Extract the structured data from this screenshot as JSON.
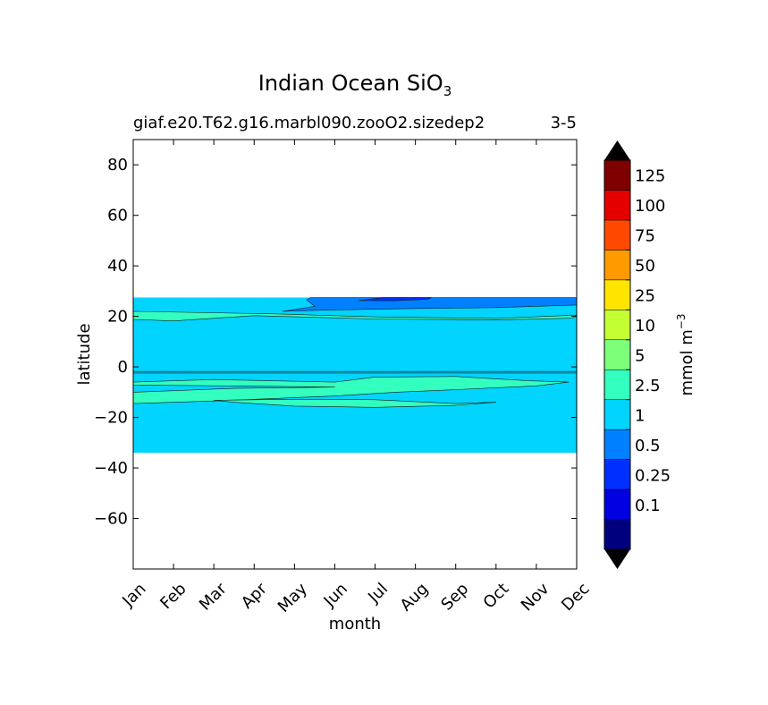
{
  "chart_data": {
    "type": "contour",
    "title": "Indian Ocean SiO",
    "title_subscript": "3",
    "subtitle_left": "giaf.e20.T62.g16.marbl090.zooO2.sizedep2",
    "subtitle_right": "3-5",
    "xlabel": "month",
    "ylabel": "latitude",
    "x_ticks": [
      "Jan",
      "Feb",
      "Mar",
      "Apr",
      "May",
      "Jun",
      "Jul",
      "Aug",
      "Sep",
      "Oct",
      "Nov",
      "Dec"
    ],
    "xlim": [
      0,
      11
    ],
    "ylim": [
      -80,
      90
    ],
    "y_ticks": [
      80,
      60,
      40,
      20,
      0,
      -20,
      -40,
      -60
    ],
    "y_tick_labels": [
      "80",
      "60",
      "40",
      "20",
      "0",
      "−20",
      "−40",
      "−60"
    ],
    "data_lat_range": [
      -34,
      27.5
    ],
    "colorbar": {
      "label": "mmol m",
      "label_superscript": "−3",
      "levels": [
        "0.1",
        "0.25",
        "0.5",
        "1",
        "2.5",
        "5",
        "10",
        "25",
        "50",
        "75",
        "100",
        "125"
      ],
      "colors": [
        "#00007f",
        "#0000e0",
        "#0030ff",
        "#0080ff",
        "#00d4ff",
        "#33ffbf",
        "#7dff7a",
        "#c4ff33",
        "#ffe500",
        "#ff9a00",
        "#ff4a00",
        "#e50000",
        "#7f0000"
      ],
      "extend": "both"
    },
    "regions": [
      {
        "name": "base",
        "level_index": 4,
        "polygon": [
          [
            0,
            27.5
          ],
          [
            11,
            27.5
          ],
          [
            11,
            -34
          ],
          [
            0,
            -34
          ]
        ]
      },
      {
        "name": "north-coast-band",
        "level_index": 5,
        "polygon": [
          [
            0,
            22
          ],
          [
            3.5,
            21
          ],
          [
            6,
            19.8
          ],
          [
            9,
            19.2
          ],
          [
            11,
            20.5
          ],
          [
            10.9,
            19.3
          ],
          [
            9,
            18.6
          ],
          [
            6,
            19
          ],
          [
            3,
            20.3
          ],
          [
            1,
            18.2
          ],
          [
            0,
            18.8
          ]
        ]
      },
      {
        "name": "arabian-sea-upper",
        "level_index": 3,
        "polygon": [
          [
            3.7,
            22
          ],
          [
            4.5,
            24
          ],
          [
            4.3,
            26.5
          ],
          [
            4.4,
            27.5
          ],
          [
            11,
            27.5
          ],
          [
            11,
            24.5
          ],
          [
            9,
            23.5
          ],
          [
            6.5,
            23
          ],
          [
            4.8,
            22.5
          ]
        ]
      },
      {
        "name": "arabian-sea-min",
        "level_index": 2,
        "polygon": [
          [
            5.6,
            26.3
          ],
          [
            6.2,
            27.5
          ],
          [
            7.4,
            27.5
          ],
          [
            7.3,
            26.8
          ],
          [
            6.5,
            26.2
          ]
        ]
      },
      {
        "name": "south-band",
        "level_index": 5,
        "polygon": [
          [
            0,
            -6
          ],
          [
            2,
            -5
          ],
          [
            5,
            -6
          ],
          [
            6,
            -4
          ],
          [
            8,
            -3.8
          ],
          [
            9.8,
            -5.5
          ],
          [
            10.8,
            -6
          ],
          [
            10,
            -7.5
          ],
          [
            8,
            -9
          ],
          [
            6.5,
            -10
          ],
          [
            5,
            -11.5
          ],
          [
            3.5,
            -12.5
          ],
          [
            2,
            -13.5
          ],
          [
            0,
            -14.5
          ],
          [
            0,
            -10
          ],
          [
            2.5,
            -8.5
          ],
          [
            5,
            -8
          ],
          [
            2.5,
            -7.5
          ],
          [
            0,
            -7.2
          ]
        ]
      },
      {
        "name": "south-band-tail",
        "level_index": 5,
        "polygon": [
          [
            2,
            -13.2
          ],
          [
            4,
            -12.8
          ],
          [
            6,
            -13
          ],
          [
            8,
            -14.5
          ],
          [
            9,
            -14
          ],
          [
            8,
            -15.2
          ],
          [
            6,
            -16
          ],
          [
            4,
            -15.5
          ],
          [
            2.5,
            -14
          ]
        ]
      }
    ],
    "contour_lines": [
      [
        [
          0,
          -1.8
        ],
        [
          11,
          -1.8
        ]
      ],
      [
        [
          0,
          -2.4
        ],
        [
          11,
          -2.4
        ]
      ]
    ]
  }
}
